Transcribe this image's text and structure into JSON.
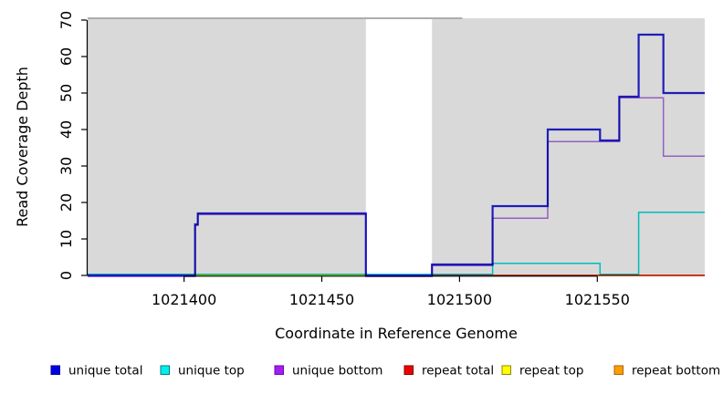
{
  "chart_data": {
    "type": "line",
    "subtype": "step-coverage",
    "title": "",
    "xlabel": "Coordinate in Reference Genome",
    "ylabel": "Read Coverage Depth",
    "xlim": [
      1021365,
      1021589
    ],
    "ylim": [
      0,
      70.5
    ],
    "x_ticks": [
      1021400,
      1021450,
      1021500,
      1021550
    ],
    "x_tick_labels": [
      "1021400",
      "1021450",
      "1021500",
      "1021550"
    ],
    "y_ticks": [
      0,
      10,
      20,
      30,
      40,
      50,
      60,
      70
    ],
    "y_tick_labels": [
      "0",
      "10",
      "20",
      "30",
      "40",
      "50",
      "60",
      "70"
    ],
    "grid": false,
    "legend_position": "bottom",
    "plot_bg_color": "#d9d9d9",
    "mask_region": {
      "x0": 1021466,
      "x1": 1021490,
      "color": "#ffffff",
      "note": "white masked interval with no shading"
    },
    "offscale_line": {
      "color": "#9a9a9a",
      "value": 70.5,
      "x0": 1021365,
      "x1": 1021501
    },
    "series": [
      {
        "name": "repeat total",
        "color": "#cc2233",
        "width": 1.5,
        "points": [
          [
            1021490,
            0
          ],
          [
            1021589,
            0
          ]
        ]
      },
      {
        "name": "repeat top",
        "color": "#e8e800",
        "width": 1.5,
        "points": [
          [
            1021404,
            0
          ],
          [
            1021466,
            0
          ]
        ]
      },
      {
        "name": "repeat bottom",
        "color": "#ff9400",
        "width": 1.7,
        "points": [
          [
            1021512,
            0
          ],
          [
            1021589,
            0
          ]
        ]
      },
      {
        "name": "unique bottom",
        "color": "#b06ee6",
        "width": 1.5,
        "dy": 1.2,
        "points": [
          [
            1021365,
            0
          ],
          [
            1021404,
            0
          ],
          [
            1021404,
            14
          ],
          [
            1021405,
            14
          ],
          [
            1021405,
            17
          ],
          [
            1021466,
            17
          ],
          [
            1021466,
            0
          ],
          [
            1021490,
            0
          ],
          [
            1021490,
            3
          ],
          [
            1021512,
            3
          ],
          [
            1021512,
            16
          ],
          [
            1021532,
            16
          ],
          [
            1021532,
            37
          ],
          [
            1021558,
            37
          ],
          [
            1021558,
            49
          ],
          [
            1021574,
            49
          ],
          [
            1021574,
            33
          ],
          [
            1021589,
            33
          ]
        ]
      },
      {
        "name": "unique top",
        "color": "#00dddd",
        "width": 1.5,
        "dy": -1.2,
        "points": [
          [
            1021365,
            0
          ],
          [
            1021512,
            0
          ],
          [
            1021512,
            3
          ],
          [
            1021551,
            3
          ],
          [
            1021551,
            0
          ],
          [
            1021565,
            0
          ],
          [
            1021565,
            17
          ],
          [
            1021589,
            17
          ]
        ]
      },
      {
        "name": "unique total",
        "color": "#2323d9",
        "width": 2.2,
        "points": [
          [
            1021365,
            0
          ],
          [
            1021404,
            0
          ],
          [
            1021404,
            14
          ],
          [
            1021405,
            14
          ],
          [
            1021405,
            17
          ],
          [
            1021466,
            17
          ],
          [
            1021466,
            0
          ],
          [
            1021490,
            0
          ],
          [
            1021490,
            3
          ],
          [
            1021512,
            3
          ],
          [
            1021512,
            19
          ],
          [
            1021532,
            19
          ],
          [
            1021532,
            40
          ],
          [
            1021551,
            40
          ],
          [
            1021551,
            37
          ],
          [
            1021558,
            37
          ],
          [
            1021558,
            49
          ],
          [
            1021565,
            49
          ],
          [
            1021565,
            66
          ],
          [
            1021574,
            66
          ],
          [
            1021574,
            50
          ],
          [
            1021589,
            50
          ]
        ]
      }
    ]
  },
  "legend": {
    "items": [
      {
        "label": "unique total",
        "fill": "#0000e6",
        "border": "#00008b"
      },
      {
        "label": "unique top",
        "fill": "#00eeee",
        "border": "#007a7a"
      },
      {
        "label": "unique bottom",
        "fill": "#a020f0",
        "border": "#7a00b8"
      },
      {
        "label": "repeat total",
        "fill": "#ee0000",
        "border": "#7a0000"
      },
      {
        "label": "repeat top",
        "fill": "#ffff00",
        "border": "#8b8b00"
      },
      {
        "label": "repeat bottom",
        "fill": "#ff9d00",
        "border": "#a86400"
      }
    ]
  },
  "axes": {
    "x_title": "Coordinate in Reference Genome",
    "y_title": "Read Coverage Depth"
  }
}
